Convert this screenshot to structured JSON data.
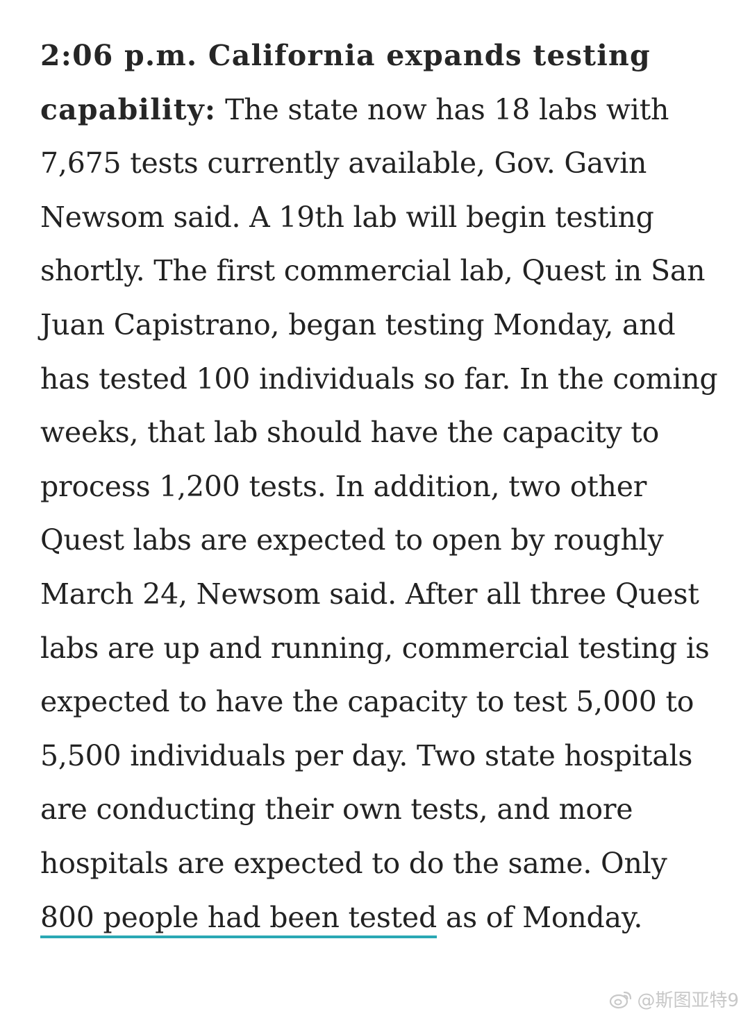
{
  "article": {
    "headline": "2:06 p.m. California expands testing capability:",
    "body_before_link": " The state now has 18 labs with 7,675 tests currently available, Gov. Gavin Newsom said. A 19th lab will begin testing shortly. The first commercial lab, Quest in San Juan Capistrano, began testing Monday, and has tested 100 individuals so far. In the coming weeks, that lab should have the capacity to process 1,200 tests. In addition, two other Quest labs are expected to open by roughly March 24, Newsom said. After all three Quest labs are up and running, commercial testing is expected to have the capacity to test 5,000 to 5,500 individuals per day. Two state hospitals are conducting their own tests, and more hospitals are expected to do the same. Only ",
    "link_text": "800 people had been tested",
    "body_after_link": " as of Monday."
  },
  "watermark": {
    "text": "@斯图亚特9",
    "icon": "weibo-icon"
  },
  "colors": {
    "text": "#222222",
    "link_underline": "#2aa8b4",
    "watermark": "#c8c8c8"
  }
}
